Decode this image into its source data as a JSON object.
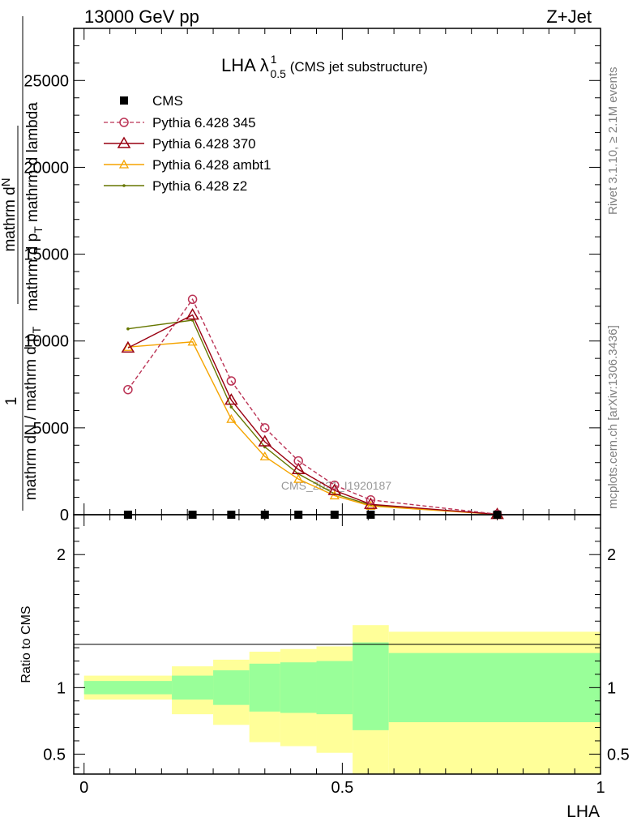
{
  "header": {
    "left": "13000 GeV pp",
    "right": "Z+Jet"
  },
  "side_text": {
    "top": "Rivet 3.1.10, ≥ 2.1M events",
    "bottom": "mcplots.cern.ch [arXiv:1306.3436]"
  },
  "title": {
    "main": "LHA λ",
    "sup": "1",
    "sub": "0.5",
    "suffix": " (CMS jet substructure)"
  },
  "watermark": "CMS_2021_I1920187",
  "ylabel_main": {
    "numer_a": "1",
    "numer_b": "mathrm d",
    "numer_c": "N",
    "denom": "mathrm dN / mathrm d p",
    "denom_sub": "T",
    "denom_tail": "mathrm d p",
    "denom_sub2": "T",
    "denom_tail2": " mathrm d lambda"
  },
  "ylabel_ratio": "Ratio to CMS",
  "xlabel": "LHA",
  "colors": {
    "p345": "#bb3355",
    "p370": "#990011",
    "ambt1": "#f5a400",
    "z2": "#667700",
    "band_inner": "#99ff99",
    "band_outer": "#ffff99"
  },
  "chart_data": [
    {
      "type": "line",
      "title": "LHA λ_0.5^1 (CMS jet substructure)",
      "ylim": [
        0,
        28000
      ],
      "xlim": [
        -0.02,
        1.0
      ],
      "yticks": [
        0,
        5000,
        10000,
        15000,
        20000,
        25000
      ],
      "ytick_labels": [
        "0",
        "5000",
        "10000",
        "15000",
        "20000",
        "25000"
      ],
      "legend_position": "top-left",
      "series": [
        {
          "name": "CMS",
          "marker": "square",
          "x": [
            0.085,
            0.21,
            0.285,
            0.35,
            0.415,
            0.485,
            0.555,
            0.8
          ],
          "y": [
            0,
            0,
            0,
            0,
            0,
            0,
            0,
            0
          ]
        },
        {
          "name": "Pythia 6.428 345",
          "marker": "open-circle",
          "style": "dashed",
          "x": [
            0.085,
            0.21,
            0.285,
            0.35,
            0.415,
            0.485,
            0.555,
            0.8
          ],
          "y": [
            7200,
            12400,
            7700,
            5000,
            3100,
            1700,
            850,
            30
          ]
        },
        {
          "name": "Pythia 6.428 370",
          "marker": "open-triangle",
          "x": [
            0.085,
            0.21,
            0.285,
            0.35,
            0.415,
            0.485,
            0.555,
            0.8
          ],
          "y": [
            9600,
            11500,
            6600,
            4200,
            2600,
            1400,
            600,
            20
          ]
        },
        {
          "name": "Pythia 6.428 ambt1",
          "marker": "open-triangle",
          "x": [
            0.085,
            0.21,
            0.285,
            0.35,
            0.415,
            0.485,
            0.555,
            0.8
          ],
          "y": [
            9650,
            9950,
            5500,
            3350,
            2050,
            1100,
            500,
            20
          ]
        },
        {
          "name": "Pythia 6.428 z2",
          "marker": "dot",
          "x": [
            0.085,
            0.21,
            0.285,
            0.35,
            0.415,
            0.485,
            0.555,
            0.8
          ],
          "y": [
            10700,
            11200,
            6200,
            3900,
            2350,
            1200,
            550,
            20
          ]
        }
      ]
    },
    {
      "type": "area",
      "ylim": [
        0.35,
        2.3
      ],
      "xlim": [
        -0.02,
        1.0
      ],
      "yticks": [
        0.5,
        1,
        2
      ],
      "ytick_labels": [
        "0.5",
        "1",
        "2"
      ],
      "xticks": [
        0,
        0.5,
        1
      ],
      "xtick_labels": [
        "0",
        "0.5",
        "1"
      ],
      "bins": [
        {
          "x": [
            0.0,
            0.17
          ],
          "inner": [
            0.95,
            1.05
          ],
          "outer": [
            0.91,
            1.09
          ]
        },
        {
          "x": [
            0.17,
            0.25
          ],
          "inner": [
            0.91,
            1.09
          ],
          "outer": [
            0.8,
            1.16
          ]
        },
        {
          "x": [
            0.25,
            0.32
          ],
          "inner": [
            0.87,
            1.13
          ],
          "outer": [
            0.72,
            1.21
          ]
        },
        {
          "x": [
            0.32,
            0.38
          ],
          "inner": [
            0.82,
            1.18
          ],
          "outer": [
            0.59,
            1.27
          ]
        },
        {
          "x": [
            0.38,
            0.45
          ],
          "inner": [
            0.81,
            1.19
          ],
          "outer": [
            0.56,
            1.29
          ]
        },
        {
          "x": [
            0.45,
            0.52
          ],
          "inner": [
            0.8,
            1.2
          ],
          "outer": [
            0.51,
            1.31
          ]
        },
        {
          "x": [
            0.52,
            0.59
          ],
          "inner": [
            0.68,
            1.34
          ],
          "outer": [
            0.35,
            1.47
          ]
        },
        {
          "x": [
            0.59,
            1.0
          ],
          "inner": [
            0.74,
            1.26
          ],
          "outer": [
            0.35,
            1.42
          ]
        }
      ]
    }
  ]
}
